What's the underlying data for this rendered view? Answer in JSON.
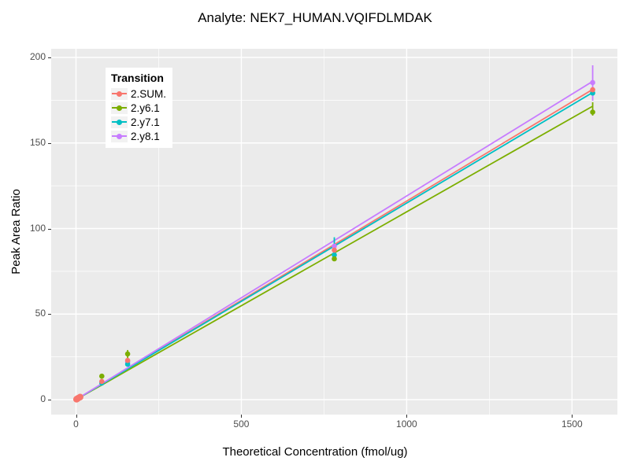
{
  "title": "Analyte: NEK7_HUMAN.VQIFDLMDAK",
  "x_axis": {
    "label": "Theoretical Concentration (fmol/ug)",
    "ticks": [
      0,
      500,
      1000,
      1500
    ],
    "minor_ticks": [
      250,
      750,
      1250
    ],
    "range": [
      -75,
      1637
    ]
  },
  "y_axis": {
    "label": "Peak Area Ratio",
    "ticks": [
      0,
      50,
      100,
      150,
      200
    ],
    "minor_ticks": [
      25,
      75,
      125,
      175
    ],
    "range": [
      -5,
      205
    ]
  },
  "legend": {
    "title": "Transition",
    "position": "top-left-inside",
    "entries": [
      {
        "label": "2.SUM.",
        "color": "#F8766D"
      },
      {
        "label": "2.y6.1",
        "color": "#7CAE00"
      },
      {
        "label": "2.y7.1",
        "color": "#00BFC4"
      },
      {
        "label": "2.y8.1",
        "color": "#C77CFF"
      }
    ]
  },
  "chart_data": {
    "type": "scatter",
    "title": "Analyte: NEK7_HUMAN.VQIFDLMDAK",
    "xlabel": "Theoretical Concentration (fmol/ug)",
    "ylabel": "Peak Area Ratio",
    "xlim": [
      -75,
      1637
    ],
    "ylim": [
      -5,
      205
    ],
    "grid": "white major and minor gridlines on grey panel",
    "legend_title": "Transition",
    "series": [
      {
        "name": "2.SUM.",
        "color": "#F8766D",
        "points": [
          [
            78.1,
            10.6
          ],
          [
            156.2,
            22.9
          ],
          [
            781.2,
            87.4
          ],
          [
            1562.5,
            181.1
          ]
        ],
        "fit_line": {
          "x": [
            0,
            1562.5
          ],
          "y": [
            0,
            181.3
          ]
        },
        "error_bars": []
      },
      {
        "name": "2.y6.1",
        "color": "#7CAE00",
        "points": [
          [
            78.1,
            13.7
          ],
          [
            156.2,
            26.7
          ],
          [
            781.2,
            82.3
          ],
          [
            1562.5,
            168.0
          ]
        ],
        "fit_line": {
          "x": [
            0,
            1562.5
          ],
          "y": [
            0,
            171.5
          ]
        },
        "error_bars": [
          {
            "x": 156.2,
            "low": 20.7,
            "high": 29.0
          },
          {
            "x": 1562.5,
            "low": 166.0,
            "high": 173.8
          }
        ]
      },
      {
        "name": "2.y7.1",
        "color": "#00BFC4",
        "points": [
          [
            78.1,
            9.7
          ],
          [
            156.2,
            20.7
          ],
          [
            781.2,
            84.6
          ],
          [
            1562.5,
            179.2
          ]
        ],
        "fit_line": {
          "x": [
            0,
            1562.5
          ],
          "y": [
            0,
            179.5
          ]
        },
        "error_bars": [
          {
            "x": 781.2,
            "low": 81.1,
            "high": 94.9
          }
        ]
      },
      {
        "name": "2.y8.1",
        "color": "#C77CFF",
        "points": [
          [
            78.1,
            10.5
          ],
          [
            156.2,
            22.0
          ],
          [
            781.2,
            89.7
          ],
          [
            1562.5,
            185.3
          ]
        ],
        "fit_line": {
          "x": [
            0,
            1562.5
          ],
          "y": [
            0,
            186.0
          ]
        },
        "error_bars": [
          {
            "x": 1562.5,
            "low": 174.7,
            "high": 195.4
          }
        ]
      }
    ],
    "low_conc_cluster": {
      "note": "overlapping points near origin rendered as salmon blob",
      "color": "#F8766D",
      "points": [
        [
          1.6,
          0.2
        ],
        [
          3.1,
          0.4
        ],
        [
          6.2,
          0.8
        ],
        [
          12.5,
          1.5
        ]
      ]
    }
  },
  "style": {
    "panel_bg": "#EBEBEB",
    "grid_color": "#FFFFFF",
    "tick_mark_color": "#333333",
    "tick_label_color": "#4D4D4D",
    "legend_bg": "#FFFFFF",
    "legend_key_bg": "#F2F2F2"
  }
}
